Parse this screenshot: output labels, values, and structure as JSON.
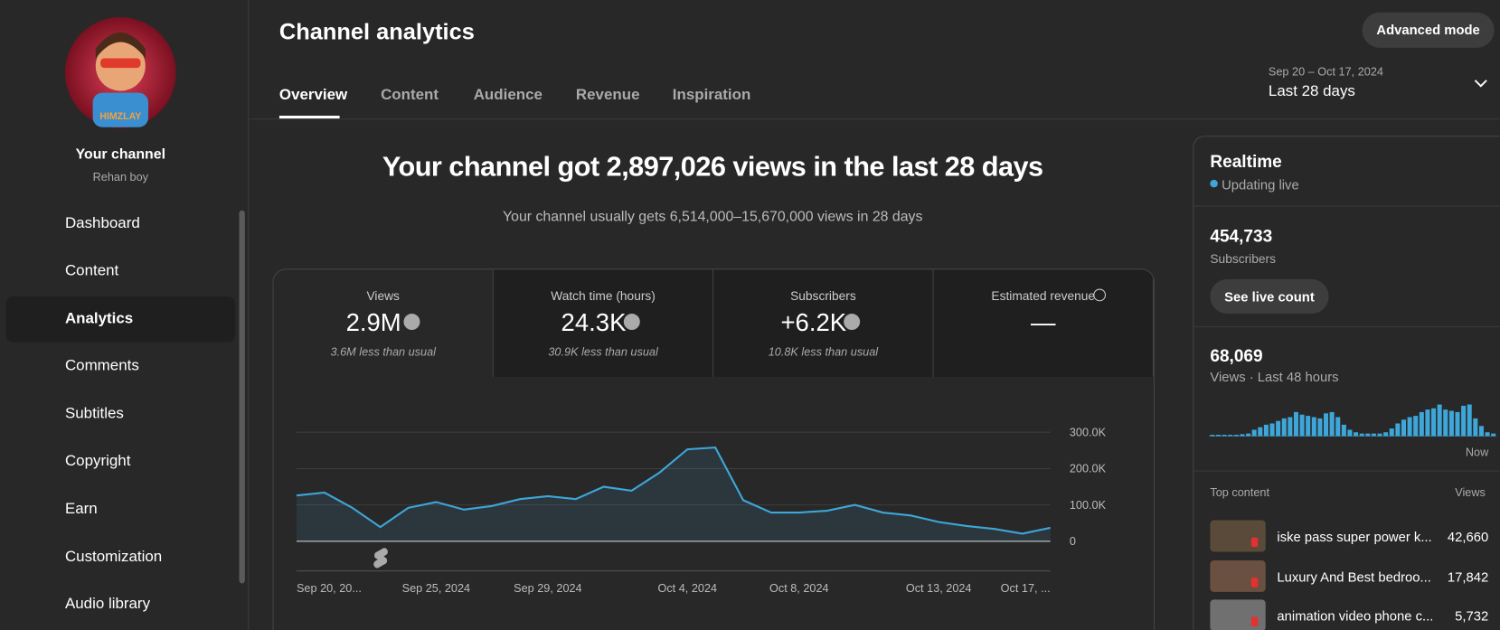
{
  "sidebar": {
    "channel_title": "Your channel",
    "channel_name": "Rehan boy",
    "items": [
      "Dashboard",
      "Content",
      "Analytics",
      "Comments",
      "Subtitles",
      "Copyright",
      "Earn",
      "Customization",
      "Audio library"
    ]
  },
  "header": {
    "title": "Channel analytics",
    "advanced_button": "Advanced mode",
    "tabs": [
      "Overview",
      "Content",
      "Audience",
      "Revenue",
      "Inspiration"
    ],
    "date_range": "Sep 20 – Oct 17, 2024",
    "period": "Last 28 days"
  },
  "summary": {
    "headline": "Your channel got 2,897,026 views in the last 28 days",
    "subline": "Your channel usually gets 6,514,000–15,670,000 views in 28 days"
  },
  "metrics": [
    {
      "label": "Views",
      "value": "2.9M",
      "note": "3.6M less than usual"
    },
    {
      "label": "Watch time (hours)",
      "value": "24.3K",
      "note": "30.9K less than usual"
    },
    {
      "label": "Subscribers",
      "value": "+6.2K",
      "note": "10.8K less than usual"
    },
    {
      "label": "Estimated revenue",
      "value": "—"
    }
  ],
  "chart_data": [
    {
      "type": "area",
      "color": "#3ea6d8",
      "categories": [
        "Sep 20, 20...",
        null,
        null,
        null,
        null,
        "Sep 25, 2024",
        null,
        null,
        null,
        "Sep 29, 2024",
        null,
        null,
        null,
        null,
        "Oct 4, 2024",
        null,
        null,
        null,
        "Oct 8, 2024",
        null,
        null,
        null,
        null,
        "Oct 13, 2024",
        null,
        null,
        null,
        "Oct 17, ..."
      ],
      "values": [
        126000,
        134000,
        92000,
        39000,
        92000,
        108000,
        87000,
        97000,
        116000,
        124000,
        116000,
        150000,
        139000,
        189000,
        253000,
        258000,
        113000,
        79000,
        79000,
        84000,
        100000,
        79000,
        71000,
        53000,
        42000,
        34000,
        21000,
        37000
      ],
      "ylim": [
        0,
        300000
      ],
      "yticks": [
        0,
        {
          "value": 100000,
          "label": "100.0K"
        },
        {
          "value": 200000,
          "label": "200.0K"
        },
        {
          "value": 300000,
          "label": "300.0K"
        }
      ],
      "grid": true
    },
    {
      "type": "bar",
      "color": "#3ea6d8",
      "x_label": "Now",
      "values": [
        100,
        100,
        100,
        100,
        100,
        150,
        200,
        500,
        700,
        900,
        1000,
        1200,
        1400,
        1500,
        1900,
        1700,
        1600,
        1500,
        1400,
        1800,
        1900,
        1500,
        900,
        500,
        300,
        200,
        200,
        200,
        200,
        300,
        600,
        1000,
        1300,
        1500,
        1600,
        1900,
        2100,
        2200,
        2500,
        2100,
        2000,
        1900,
        2400,
        2500,
        1400,
        800,
        300,
        200
      ]
    }
  ],
  "realtime": {
    "title": "Realtime",
    "status": "Updating live",
    "subscribers": "454,733",
    "subscribers_label": "Subscribers",
    "live_button": "See live count",
    "views": "68,069",
    "views_label": "Views · Last 48 hours",
    "top_header": "Top content",
    "top_views_header": "Views",
    "top_content": [
      {
        "title": "iske pass super power k...",
        "views": "42,660"
      },
      {
        "title": "Luxury And Best bedroo...",
        "views": "17,842"
      },
      {
        "title": "animation video phone c...",
        "views": "5,732"
      }
    ]
  }
}
